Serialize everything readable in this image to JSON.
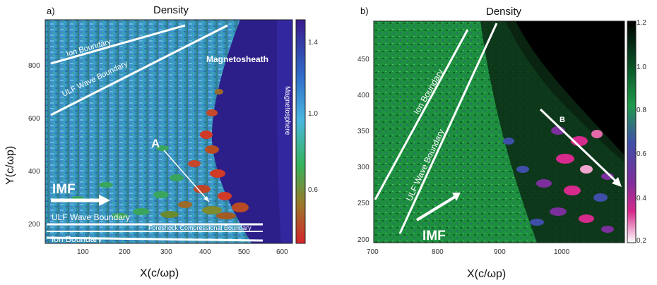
{
  "figure": {
    "panel_a": {
      "label": "a)",
      "title": "Density",
      "x_axis": {
        "label": "X(c/ωp)",
        "ticks": [
          "100",
          "200",
          "300",
          "400",
          "500",
          "600"
        ]
      },
      "y_axis": {
        "label": "Y(c/ωp)",
        "ticks": [
          "200",
          "400",
          "600",
          "800"
        ]
      },
      "colorbar": {
        "ticks": [
          "1.4",
          "1.0",
          "0.6"
        ],
        "colors": [
          "#3a1a8c",
          "#2f6cc9",
          "#49b7e0",
          "#35b35a",
          "#9a7a2a",
          "#d6242a"
        ]
      },
      "annotations": {
        "ion_boundary_top": "Ion Boundary",
        "ulf_boundary_top": "ULF Wave Boundary",
        "magnetosheath": "Magnetosheath",
        "magnetosphere": "Magnetosphere",
        "a_marker": "A",
        "imf": "IMF",
        "ulf_boundary_bottom": "ULF Wave Boundary",
        "foreshock": "Foreshock Compressional Boundary",
        "ion_boundary_bottom": "Ion Boundary"
      }
    },
    "panel_b": {
      "label": "b)",
      "title": "Density",
      "x_axis": {
        "label": "X(c/ωp)",
        "ticks": [
          "700",
          "800",
          "900",
          "1000"
        ]
      },
      "y_axis": {
        "ticks": [
          "200",
          "250",
          "300",
          "350",
          "400",
          "450"
        ]
      },
      "colorbar": {
        "ticks": [
          "1.2",
          "1.0",
          "0.8",
          "0.6",
          "0.4",
          "0.2"
        ],
        "colors": [
          "#000000",
          "#0b5a2a",
          "#1f9a4a",
          "#3f4fa8",
          "#7b2f9c",
          "#d62a8c",
          "#ffffff"
        ]
      },
      "annotations": {
        "ion_boundary": "Ion Boundary",
        "ulf_boundary": "ULF Wave Boundary",
        "b_marker": "B",
        "imf": "IMF"
      }
    }
  }
}
